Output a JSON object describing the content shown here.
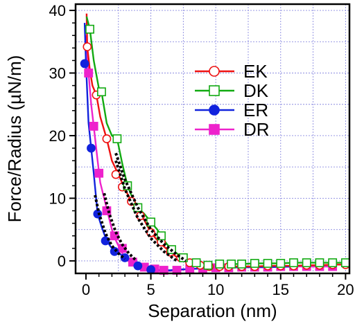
{
  "chart_data": {
    "type": "line",
    "xlabel": "Separation (nm)",
    "ylabel": "Force/Radius (µN/m)",
    "xlim": [
      -0.8,
      20.3
    ],
    "ylim": [
      -2,
      41
    ],
    "x_ticks": [
      "0",
      "5",
      "10",
      "15",
      "20"
    ],
    "y_ticks": [
      "0",
      "10",
      "20",
      "30",
      "40"
    ],
    "x_tick_values": [
      0,
      5,
      10,
      15,
      20
    ],
    "y_tick_values": [
      0,
      10,
      20,
      30,
      40
    ],
    "grid": true,
    "legend_position": "upper-right",
    "series": [
      {
        "name": "EK",
        "color": "#ee1111",
        "marker": "open-circle",
        "x": [
          0.05,
          0.1,
          0.3,
          0.5,
          0.8,
          1.1,
          1.6,
          2.0,
          2.5,
          3.0,
          3.5,
          4.0,
          4.5,
          5.0,
          5.5,
          6.0,
          6.5,
          7.0,
          7.5,
          8.0,
          8.5,
          9.0,
          9.5,
          10.0,
          11.0,
          12.0,
          13.0,
          14.0,
          15.0,
          16.0,
          17.0,
          18.0,
          19.0,
          20.0
        ],
        "y": [
          39.5,
          34.2,
          30.5,
          28.0,
          26.5,
          23.0,
          19.5,
          16.0,
          13.8,
          11.5,
          9.5,
          8.0,
          6.5,
          4.5,
          3.3,
          2.3,
          1.4,
          0.6,
          0.0,
          -0.3,
          -0.6,
          -0.8,
          -0.9,
          -0.9,
          -0.9,
          -0.9,
          -0.9,
          -0.8,
          -0.8,
          -0.8,
          -0.7,
          -0.7,
          -0.6,
          -0.6
        ],
        "marker_x": [
          0.1,
          0.8,
          1.6,
          2.3,
          2.8,
          3.5,
          4.2,
          5.0,
          5.8,
          6.5,
          7.3,
          8.0,
          8.8,
          9.5,
          10.3,
          11.0,
          12.0,
          13.0,
          14.0,
          15.0,
          16.0,
          17.0,
          18.0,
          19.0,
          20.0
        ],
        "marker_y": [
          34.2,
          26.5,
          19.5,
          13.8,
          11.8,
          9.5,
          7.2,
          4.5,
          3.0,
          1.4,
          0.5,
          -0.3,
          -0.7,
          -0.9,
          -0.9,
          -0.9,
          -0.9,
          -0.9,
          -0.8,
          -0.8,
          -0.8,
          -0.7,
          -0.7,
          -0.6,
          -0.6
        ]
      },
      {
        "name": "DK",
        "color": "#11aa11",
        "marker": "open-square",
        "x": [
          0.05,
          0.3,
          0.6,
          1.0,
          1.2,
          1.6,
          2.0,
          2.4,
          2.8,
          3.2,
          3.6,
          4.0,
          4.5,
          5.0,
          5.5,
          6.0,
          6.5,
          7.0,
          7.5,
          8.0,
          8.5,
          9.0,
          9.5,
          10.0,
          11.0,
          12.0,
          13.0,
          14.0,
          15.0,
          16.0,
          17.0,
          18.0,
          19.0,
          20.0
        ],
        "y": [
          39.0,
          37.0,
          32.0,
          27.5,
          27.0,
          22.0,
          20.0,
          19.5,
          15.5,
          12.0,
          10.0,
          8.5,
          7.5,
          6.2,
          5.0,
          3.3,
          2.0,
          1.2,
          0.5,
          -0.2,
          -0.3,
          -0.6,
          -0.7,
          -0.6,
          -0.5,
          -0.5,
          -0.4,
          -0.4,
          -0.4,
          -0.3,
          -0.3,
          -0.3,
          -0.3,
          -0.3
        ],
        "marker_x": [
          0.3,
          1.2,
          2.4,
          3.2,
          4.0,
          5.0,
          5.8,
          6.6,
          7.5,
          8.5,
          9.4,
          10.3,
          11.2,
          12.0,
          13.0,
          14.0,
          15.0,
          16.0,
          17.0,
          18.0,
          19.0,
          20.0
        ],
        "marker_y": [
          37.0,
          27.0,
          19.5,
          12.0,
          8.5,
          6.2,
          4.0,
          1.8,
          0.5,
          -0.3,
          -0.7,
          -0.5,
          -0.5,
          -0.5,
          -0.4,
          -0.4,
          -0.4,
          -0.3,
          -0.3,
          -0.3,
          -0.3,
          -0.3
        ]
      },
      {
        "name": "ER",
        "color": "#1122dd",
        "marker": "filled-circle",
        "x": [
          -0.1,
          0.0,
          0.2,
          0.4,
          0.6,
          0.9,
          1.2,
          1.6,
          2.0,
          2.5,
          3.0,
          3.5,
          4.0,
          4.5,
          5.0,
          5.5,
          6.0,
          6.5,
          7.0,
          8.0,
          9.0,
          10.0,
          12.0,
          14.0,
          16.0
        ],
        "y": [
          38.0,
          31.5,
          22.0,
          18.0,
          14.0,
          7.5,
          5.5,
          3.2,
          2.0,
          1.3,
          0.5,
          -0.2,
          -0.8,
          -1.2,
          -1.4,
          -1.5,
          -1.5,
          -1.5,
          -1.4,
          -1.3,
          -1.2,
          -1.1,
          -1.0,
          -1.0,
          -0.9
        ],
        "marker_x": [
          -0.1,
          0.4,
          0.9,
          1.5,
          2.2,
          3.0,
          4.0,
          5.0
        ],
        "marker_y": [
          31.5,
          18.0,
          7.5,
          3.2,
          1.5,
          0.5,
          -0.8,
          -1.4
        ]
      },
      {
        "name": "DR",
        "color": "#ee22cc",
        "marker": "filled-square",
        "x": [
          0.0,
          0.2,
          0.4,
          0.6,
          0.9,
          1.1,
          1.4,
          1.7,
          2.0,
          2.3,
          2.6,
          3.0,
          3.5,
          4.0,
          4.5,
          5.0,
          5.5,
          6.0,
          6.5,
          7.0,
          7.5,
          8.0,
          9.0,
          10.0,
          11.0,
          12.0,
          13.0,
          14.0,
          15.0,
          16.0,
          17.0,
          18.0,
          19.0
        ],
        "y": [
          36.0,
          30.0,
          25.0,
          21.5,
          16.0,
          12.5,
          10.0,
          7.5,
          5.0,
          3.3,
          2.0,
          0.5,
          -0.5,
          -0.9,
          -1.0,
          -1.2,
          -1.4,
          -1.6,
          -1.6,
          -1.5,
          -1.4,
          -1.3,
          -1.2,
          -1.1,
          -1.1,
          -1.0,
          -1.0,
          -1.0,
          -0.9,
          -0.9,
          -0.9,
          -0.9,
          -0.9
        ],
        "marker_x": [
          0.2,
          0.6,
          1.0,
          1.6,
          2.2,
          2.8,
          3.6,
          4.5,
          5.3,
          6.0,
          7.0,
          8.0,
          9.0,
          10.0,
          11.0,
          12.0,
          13.0,
          14.0,
          15.0,
          16.0,
          17.0,
          18.0,
          19.0
        ],
        "marker_y": [
          30.0,
          21.5,
          14.0,
          8.0,
          4.0,
          2.0,
          -0.2,
          -1.0,
          -1.3,
          -1.5,
          -1.5,
          -1.3,
          -1.2,
          -1.1,
          -1.1,
          -1.0,
          -1.0,
          -1.0,
          -0.9,
          -0.9,
          -0.9,
          -0.9,
          -0.9
        ]
      }
    ],
    "fit_curves": [
      {
        "color": "#000000",
        "style": "dotted",
        "x": [
          2.3,
          3.0,
          4.0,
          5.0,
          6.0,
          7.0
        ],
        "y": [
          16.0,
          11.5,
          6.8,
          3.6,
          1.5,
          0.0
        ]
      },
      {
        "color": "#000000",
        "style": "dotted",
        "x": [
          2.3,
          3.0,
          4.0,
          5.0,
          6.0,
          7.0,
          7.7
        ],
        "y": [
          17.2,
          13.0,
          8.5,
          5.0,
          2.7,
          1.0,
          0.0
        ]
      },
      {
        "color": "#000000",
        "style": "dotted",
        "x": [
          0.7,
          1.0,
          1.5,
          2.0,
          2.5,
          3.0
        ],
        "y": [
          10.5,
          7.6,
          4.4,
          2.4,
          1.2,
          0.3
        ]
      },
      {
        "color": "#000000",
        "style": "dotted",
        "x": [
          1.4,
          1.8,
          2.3,
          2.8,
          3.3,
          3.9
        ],
        "y": [
          10.8,
          7.5,
          4.6,
          2.6,
          1.2,
          0.0
        ]
      }
    ]
  }
}
